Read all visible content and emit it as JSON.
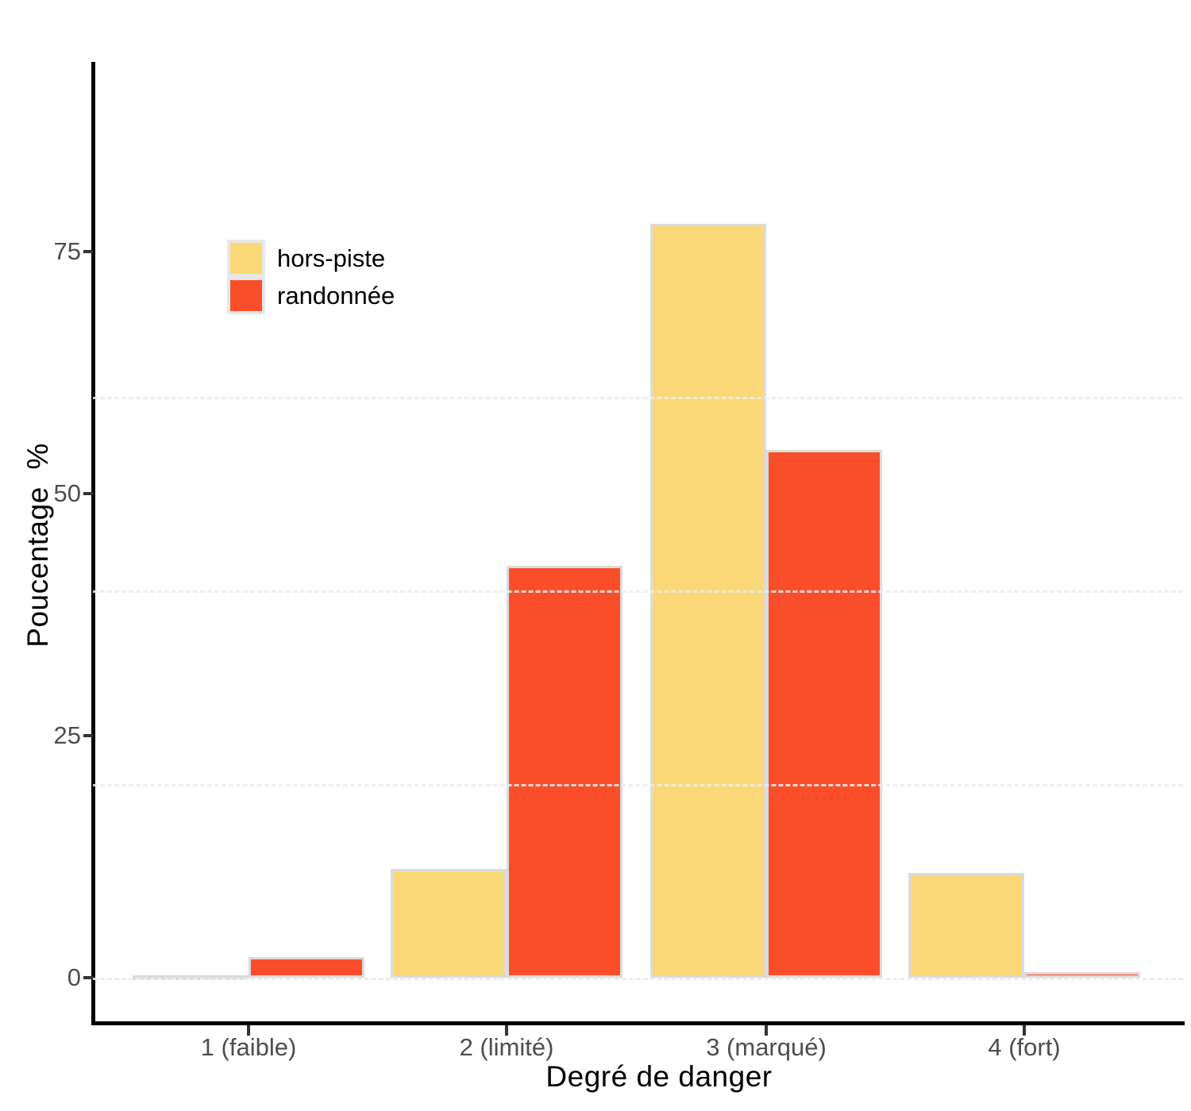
{
  "chart_data": {
    "type": "bar",
    "title": "",
    "xlabel": "Degré de danger",
    "ylabel": "Poucentage  %",
    "categories": [
      "1 (faible)",
      "2 (limité)",
      "3 (marqué)",
      "4 (fort)"
    ],
    "series": [
      {
        "name": "hors-piste",
        "color": "#FBD877",
        "values": [
          0.2,
          11.2,
          77.9,
          10.8
        ]
      },
      {
        "name": "randonnée",
        "color": "#FA4E2B",
        "values": [
          2.1,
          42.5,
          54.5,
          0.6
        ]
      }
    ],
    "y_ticks": [
      0,
      25,
      50,
      75
    ],
    "gridline_values": [
      0,
      20,
      40,
      60
    ],
    "ylim": [
      -4.5,
      94.6
    ],
    "grid": "dashed, light gray, horizontal only",
    "legend_position": "inside top-left",
    "bar_outline_color": "#DBDBDB",
    "axis_color": "#000000",
    "tick_label_color": "#4D4D4D"
  }
}
